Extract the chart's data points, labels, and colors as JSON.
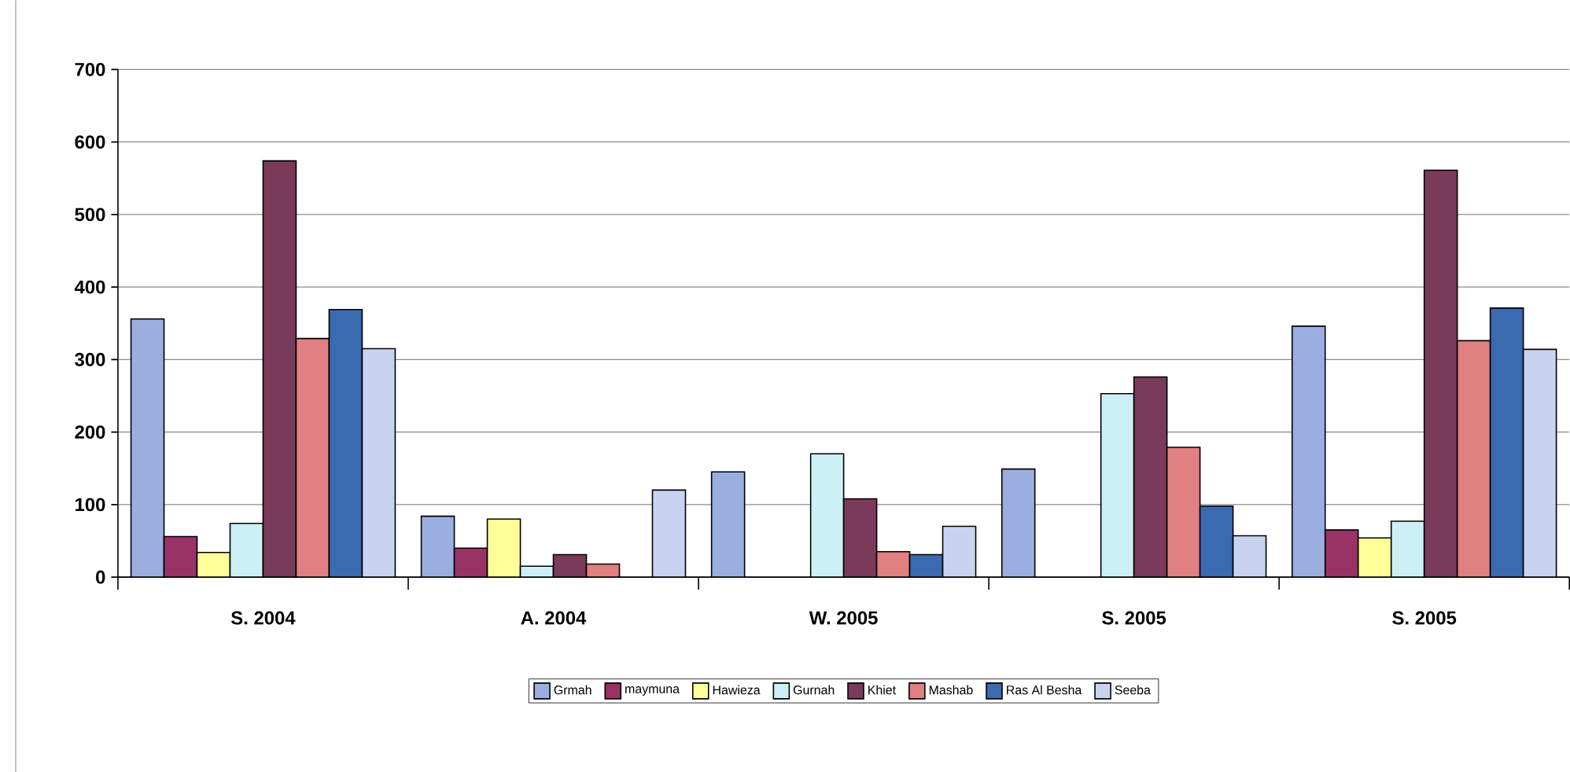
{
  "chart_data": {
    "type": "bar",
    "categories": [
      "S. 2004",
      "A. 2004",
      "W. 2005",
      "S. 2005",
      "S. 2005"
    ],
    "series": [
      {
        "name": "Grmah",
        "color": "#9aaee0",
        "values": [
          356,
          84,
          145,
          149,
          346
        ]
      },
      {
        "name": "maymuna",
        "color": "#993366",
        "values": [
          56,
          40,
          null,
          null,
          65
        ]
      },
      {
        "name": "Hawieza",
        "color": "#ffff99",
        "values": [
          34,
          80,
          null,
          null,
          54
        ]
      },
      {
        "name": "Gurnah",
        "color": "#ccf0f5",
        "values": [
          74,
          15,
          170,
          253,
          77
        ]
      },
      {
        "name": "Khiet",
        "color": "#7a3a5a",
        "values": [
          574,
          31,
          108,
          276,
          561
        ]
      },
      {
        "name": "Mashab",
        "color": "#e08080",
        "values": [
          329,
          18,
          35,
          179,
          326
        ]
      },
      {
        "name": "Ras Al Besha",
        "color": "#3a6ab0",
        "values": [
          369,
          null,
          31,
          98,
          371
        ]
      },
      {
        "name": "Seeba",
        "color": "#c8d4ef",
        "values": [
          315,
          120,
          70,
          57,
          314
        ]
      }
    ],
    "ylim": [
      0,
      700
    ],
    "yticks": [
      0,
      100,
      200,
      300,
      400,
      500,
      600,
      700
    ],
    "grid": "y",
    "legend": "bottom"
  }
}
